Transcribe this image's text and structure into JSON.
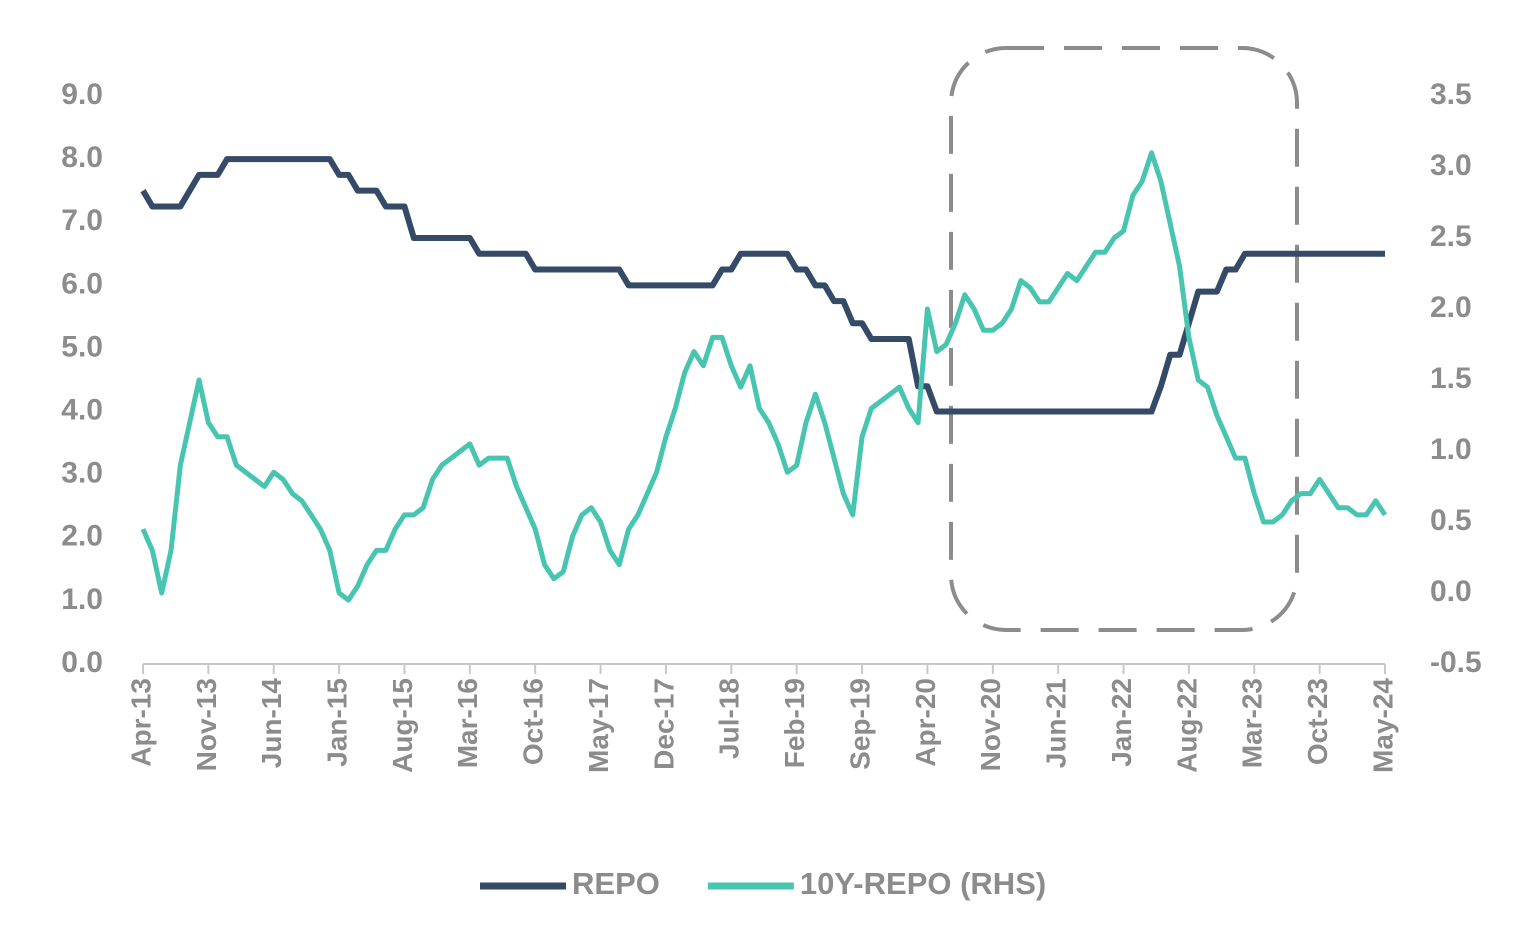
{
  "chart_data": {
    "type": "line",
    "categories": [
      "Apr-13",
      null,
      null,
      null,
      null,
      null,
      null,
      "Nov-13",
      null,
      null,
      null,
      null,
      null,
      null,
      "Jun-14",
      null,
      null,
      null,
      null,
      null,
      null,
      "Jan-15",
      null,
      null,
      null,
      null,
      null,
      null,
      "Aug-15",
      null,
      null,
      null,
      null,
      null,
      null,
      "Mar-16",
      null,
      null,
      null,
      null,
      null,
      null,
      "Oct-16",
      null,
      null,
      null,
      null,
      null,
      null,
      "May-17",
      null,
      null,
      null,
      null,
      null,
      null,
      "Dec-17",
      null,
      null,
      null,
      null,
      null,
      null,
      "Jul-18",
      null,
      null,
      null,
      null,
      null,
      null,
      "Feb-19",
      null,
      null,
      null,
      null,
      null,
      null,
      "Sep-19",
      null,
      null,
      null,
      null,
      null,
      null,
      "Apr-20",
      null,
      null,
      null,
      null,
      null,
      null,
      "Nov-20",
      null,
      null,
      null,
      null,
      null,
      null,
      "Jun-21",
      null,
      null,
      null,
      null,
      null,
      null,
      "Jan-22",
      null,
      null,
      null,
      null,
      null,
      null,
      "Aug-22",
      null,
      null,
      null,
      null,
      null,
      null,
      "Mar-23",
      null,
      null,
      null,
      null,
      null,
      null,
      "Oct-23",
      null,
      null,
      null,
      null,
      null,
      null,
      "May-24"
    ],
    "series": [
      {
        "name": "REPO",
        "color": "#344a66",
        "axis": "y",
        "values": [
          7.5,
          7.25,
          7.25,
          7.25,
          7.25,
          7.5,
          7.75,
          7.75,
          7.75,
          8.0,
          8.0,
          8.0,
          8.0,
          8.0,
          8.0,
          8.0,
          8.0,
          8.0,
          8.0,
          8.0,
          8.0,
          7.75,
          7.75,
          7.5,
          7.5,
          7.5,
          7.25,
          7.25,
          7.25,
          6.75,
          6.75,
          6.75,
          6.75,
          6.75,
          6.75,
          6.75,
          6.5,
          6.5,
          6.5,
          6.5,
          6.5,
          6.5,
          6.25,
          6.25,
          6.25,
          6.25,
          6.25,
          6.25,
          6.25,
          6.25,
          6.25,
          6.25,
          6.0,
          6.0,
          6.0,
          6.0,
          6.0,
          6.0,
          6.0,
          6.0,
          6.0,
          6.0,
          6.25,
          6.25,
          6.5,
          6.5,
          6.5,
          6.5,
          6.5,
          6.5,
          6.25,
          6.25,
          6.0,
          6.0,
          5.75,
          5.75,
          5.4,
          5.4,
          5.15,
          5.15,
          5.15,
          5.15,
          5.15,
          4.4,
          4.4,
          4.0,
          4.0,
          4.0,
          4.0,
          4.0,
          4.0,
          4.0,
          4.0,
          4.0,
          4.0,
          4.0,
          4.0,
          4.0,
          4.0,
          4.0,
          4.0,
          4.0,
          4.0,
          4.0,
          4.0,
          4.0,
          4.0,
          4.0,
          4.0,
          4.4,
          4.9,
          4.9,
          5.4,
          5.9,
          5.9,
          5.9,
          6.25,
          6.25,
          6.5,
          6.5,
          6.5,
          6.5,
          6.5,
          6.5,
          6.5,
          6.5,
          6.5,
          6.5,
          6.5,
          6.5,
          6.5,
          6.5,
          6.5,
          6.5
        ]
      },
      {
        "name": "10Y-REPO (RHS)",
        "color": "#48c5b0",
        "axis": "y2",
        "values": [
          0.45,
          0.3,
          0.0,
          0.3,
          0.9,
          1.2,
          1.5,
          1.2,
          1.1,
          1.1,
          0.9,
          0.85,
          0.8,
          0.75,
          0.85,
          0.8,
          0.7,
          0.65,
          0.55,
          0.45,
          0.3,
          0.0,
          -0.05,
          0.05,
          0.2,
          0.3,
          0.3,
          0.45,
          0.55,
          0.55,
          0.6,
          0.8,
          0.9,
          0.95,
          1.0,
          1.05,
          0.9,
          0.95,
          0.95,
          0.95,
          0.75,
          0.6,
          0.45,
          0.2,
          0.1,
          0.15,
          0.4,
          0.55,
          0.6,
          0.5,
          0.3,
          0.2,
          0.45,
          0.55,
          0.7,
          0.85,
          1.1,
          1.3,
          1.55,
          1.7,
          1.6,
          1.8,
          1.8,
          1.6,
          1.45,
          1.6,
          1.3,
          1.2,
          1.05,
          0.85,
          0.9,
          1.2,
          1.4,
          1.2,
          0.95,
          0.7,
          0.55,
          1.1,
          1.3,
          1.35,
          1.4,
          1.45,
          1.3,
          1.2,
          2.0,
          1.7,
          1.75,
          1.9,
          2.1,
          2.0,
          1.85,
          1.85,
          1.9,
          2.0,
          2.2,
          2.15,
          2.05,
          2.05,
          2.15,
          2.25,
          2.2,
          2.3,
          2.4,
          2.4,
          2.5,
          2.55,
          2.8,
          2.9,
          3.1,
          2.9,
          2.6,
          2.3,
          1.8,
          1.5,
          1.45,
          1.25,
          1.1,
          0.95,
          0.95,
          0.7,
          0.5,
          0.5,
          0.55,
          0.65,
          0.7,
          0.7,
          0.8,
          0.7,
          0.6,
          0.6,
          0.55,
          0.55,
          0.65,
          0.55
        ]
      }
    ],
    "ylim": [
      0,
      9
    ],
    "yticks": [
      {
        "value": 0,
        "label": "0.0"
      },
      {
        "value": 1,
        "label": "1.0"
      },
      {
        "value": 2,
        "label": "2.0"
      },
      {
        "value": 3,
        "label": "3.0"
      },
      {
        "value": 4,
        "label": "4.0"
      },
      {
        "value": 5,
        "label": "5.0"
      },
      {
        "value": 6,
        "label": "6.0"
      },
      {
        "value": 7,
        "label": "7.0"
      },
      {
        "value": 8,
        "label": "8.0"
      },
      {
        "value": 9,
        "label": "9.0"
      }
    ],
    "y2lim": [
      -0.5,
      3.5
    ],
    "y2ticks": [
      -0.5,
      {
        "value": 0,
        "label": "0.0"
      },
      0.5,
      {
        "value": 1,
        "label": "1.0"
      },
      1.5,
      {
        "value": 2,
        "label": "2.0"
      },
      2.5,
      {
        "value": 3,
        "label": "3.0"
      },
      3.5
    ],
    "grid": false,
    "legend": "bottom"
  }
}
